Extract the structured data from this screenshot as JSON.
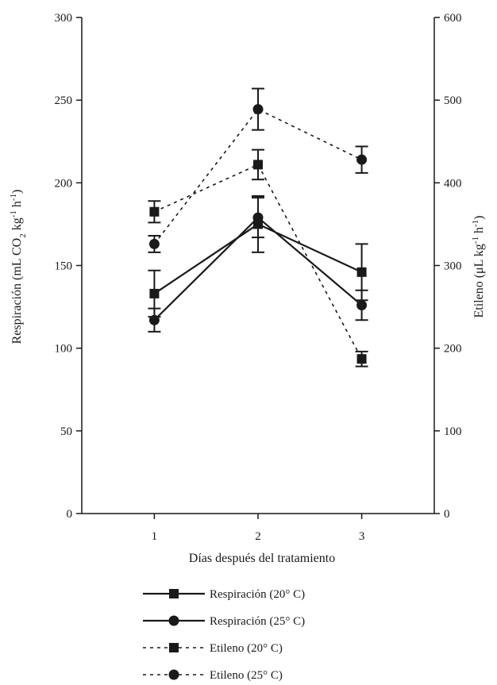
{
  "chart_data": {
    "type": "line",
    "xlabel": "Días después del tratamiento",
    "ylabel_left": {
      "main": "Respiración (mL CO",
      "sub": "2",
      "after_sub": " kg",
      "sup1": "-1",
      "between": " h",
      "sup2": "-1",
      "end": ")"
    },
    "ylabel_right": {
      "main": "Etileno (μL kg",
      "sup1": "-1",
      "between": " h",
      "sup2": "-1",
      "end": ")"
    },
    "x": [
      1,
      2,
      3
    ],
    "x_ticks": [
      "1",
      "2",
      "3"
    ],
    "xlim": [
      0.3,
      3.7
    ],
    "ylim_left": [
      0,
      300
    ],
    "ylim_right": [
      0,
      600
    ],
    "y_ticks_left": [
      "0",
      "50",
      "100",
      "150",
      "200",
      "250",
      "300"
    ],
    "y_ticks_right": [
      "0",
      "100",
      "200",
      "300",
      "400",
      "500",
      "600"
    ],
    "legend_position": "bottom",
    "series": [
      {
        "name": "Respiración (20° C)",
        "axis": "left",
        "line": "solid",
        "marker": "square",
        "values": [
          133,
          175,
          146
        ],
        "errors": [
          14,
          17,
          17
        ]
      },
      {
        "name": "Respiración (25° C)",
        "axis": "left",
        "line": "solid",
        "marker": "circle",
        "values": [
          117,
          179,
          126
        ],
        "errors": [
          7,
          12,
          9
        ]
      },
      {
        "name": "Etileno (20° C)",
        "axis": "right",
        "line": "dashed",
        "marker": "square",
        "values": [
          365,
          422,
          187
        ],
        "errors": [
          13,
          18,
          9
        ]
      },
      {
        "name": "Etileno (25° C)",
        "axis": "right",
        "line": "dashed",
        "marker": "circle",
        "values": [
          326,
          489,
          428
        ],
        "errors": [
          10,
          25,
          16
        ]
      }
    ]
  }
}
